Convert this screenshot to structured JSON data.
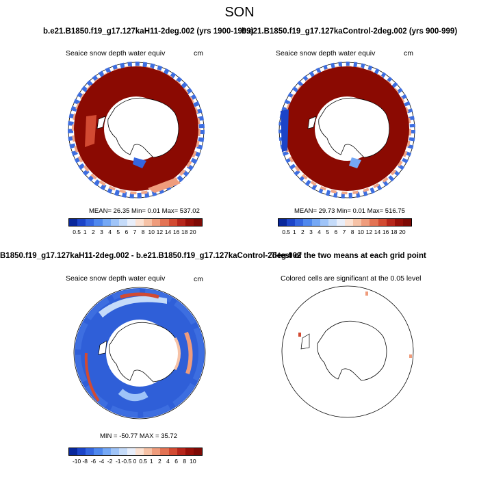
{
  "title": "SON",
  "subtitles": {
    "left": "b.e21.B1850.f19_g17.127kaH11-2deg.002 (yrs 1900-1999)",
    "right": "b.e21.B1850.f19_g17.127kaControl-2deg.002 (yrs 900-999)",
    "bottom_left": "B1850.f19_g17.127kaH11-2deg.002 - b.e21.B1850.f19_g17.127kaControl-2deg.002",
    "bottom_right": "T-test of the two means at each grid point"
  },
  "panels": {
    "top_left": {
      "label": "Seaice snow depth water equiv",
      "units": "cm",
      "stats": "MEAN=  26.35  Min=   0.01  Max= 537.02"
    },
    "top_right": {
      "label": "Seaice snow depth water equiv",
      "units": "cm",
      "stats": "MEAN=  29.73  Min=   0.01  Max= 516.75"
    },
    "bottom_left": {
      "label": "Seaice snow depth water equiv",
      "units": "cm",
      "stats": "MIN = -50.77  MAX =  35.72"
    },
    "bottom_right": {
      "label": "Colored cells are significant at the 0.05 level"
    }
  },
  "colorbar_abs": {
    "labels": [
      "0.5",
      "1",
      "2",
      "3",
      "4",
      "5",
      "6",
      "7",
      "8",
      "10",
      "12",
      "14",
      "16",
      "18",
      "20"
    ],
    "colors": [
      "#08279b",
      "#1b44c8",
      "#3466e0",
      "#4f88ee",
      "#75a8f5",
      "#9fc4f8",
      "#c5dbf9",
      "#e8eefa",
      "#fbe1d2",
      "#f6c2a6",
      "#ef9c7c",
      "#e37354",
      "#d24a32",
      "#b6261b",
      "#961009",
      "#7e0a05"
    ]
  },
  "colorbar_diff": {
    "labels": [
      "-10",
      "-8",
      "-6",
      "-4",
      "-2",
      "-1",
      "-0.5",
      "0",
      "0.5",
      "1",
      "2",
      "4",
      "6",
      "8",
      "10"
    ],
    "colors": [
      "#08279b",
      "#1b44c8",
      "#3466e0",
      "#4f88ee",
      "#75a8f5",
      "#9fc4f8",
      "#c5dbf9",
      "#e8eefa",
      "#fbe1d2",
      "#f6c2a6",
      "#ef9c7c",
      "#e37354",
      "#d24a32",
      "#b6261b",
      "#961009",
      "#7e0a05"
    ]
  },
  "colors": {
    "ice_red": "#8b0a02",
    "continent": "#ffffff",
    "ocean_blue": "#2f5fd8",
    "outline": "#000000"
  }
}
